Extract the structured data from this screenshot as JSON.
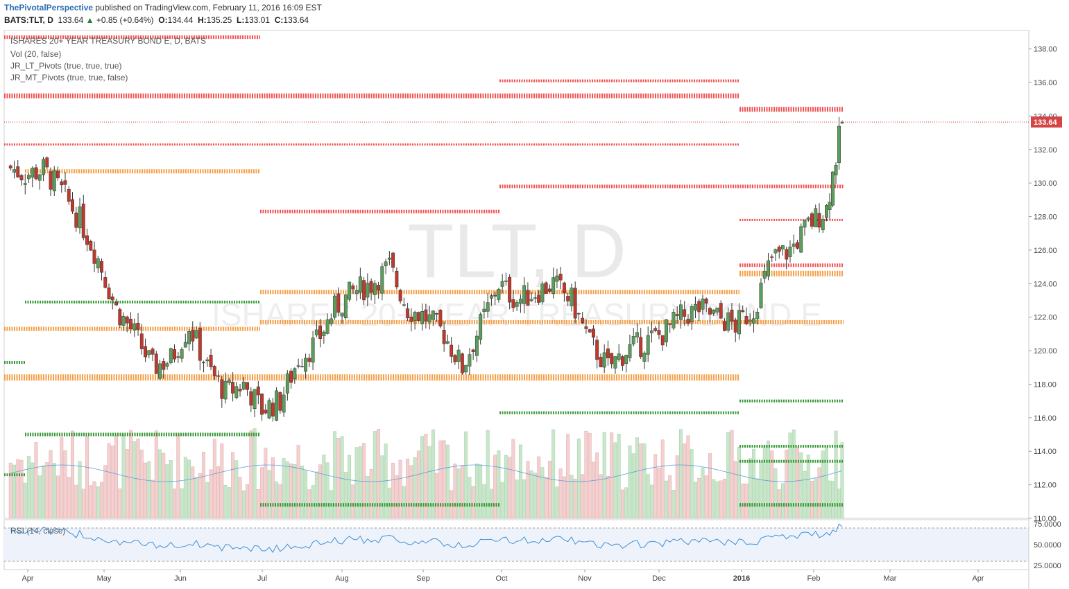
{
  "header": {
    "author": "ThePivotalPerspective",
    "published": "published on TradingView.com, February 11, 2016 16:09 EST"
  },
  "quote": {
    "symbol": "BATS:TLT, D",
    "last": "133.64",
    "change": "+0.85 (+0.64%)",
    "open_label": "O:",
    "open": "134.44",
    "high_label": "H:",
    "high": "135.25",
    "low_label": "L:",
    "low": "133.01",
    "close_label": "C:",
    "close": "133.64"
  },
  "indicators": {
    "title": "ISHARES 20+ YEAR TREASURY BOND E, D, BATS",
    "vol": "Vol (20, false)",
    "lt_pivots": "JR_LT_Pivots (true, true, true)",
    "mt_pivots": "JR_MT_Pivots (true, true, false)",
    "rsi": "RSI (14, close)"
  },
  "watermark": {
    "symbol": "TLT, D",
    "name": "ISHARES 20+ YEAR TREASURY BOND E"
  },
  "price_axis": {
    "ticks": [
      "138.00",
      "136.00",
      "134.00",
      "132.00",
      "130.00",
      "128.00",
      "126.00",
      "124.00",
      "122.00",
      "120.00",
      "118.00",
      "116.00",
      "114.00",
      "112.00",
      "110.00"
    ],
    "last_price": "133.64"
  },
  "rsi_axis": {
    "ticks": [
      "75.0000",
      "50.0000",
      "25.0000"
    ]
  },
  "time_axis": {
    "labels": [
      "Apr",
      "May",
      "Jun",
      "Jul",
      "Aug",
      "Sep",
      "Oct",
      "Nov",
      "Dec",
      "2016",
      "Feb",
      "Mar",
      "Apr"
    ]
  },
  "colors": {
    "up": "#5b9e5b",
    "down": "#c0392b",
    "resistance": "#f05454",
    "pivot": "#f5a04a",
    "support": "#3a9a3a",
    "volume_up": "#c8e6c9",
    "volume_down": "#f4d0d0",
    "rsi_line": "#3d8fd6",
    "rsi_band": "#eef3fb"
  },
  "chart_data": {
    "type": "candlestick",
    "symbol": "BATS:TLT",
    "x": [
      "2015-03-27",
      "2015-04-03",
      "2015-04-10",
      "2015-04-17",
      "2015-04-24",
      "2015-05-01",
      "2015-05-08",
      "2015-05-15",
      "2015-05-22",
      "2015-05-29",
      "2015-06-05",
      "2015-06-12",
      "2015-06-19",
      "2015-06-26",
      "2015-07-03",
      "2015-07-10",
      "2015-07-17",
      "2015-07-24",
      "2015-07-31",
      "2015-08-07",
      "2015-08-14",
      "2015-08-21",
      "2015-08-28",
      "2015-09-04",
      "2015-09-11",
      "2015-09-18",
      "2015-09-25",
      "2015-10-02",
      "2015-10-09",
      "2015-10-16",
      "2015-10-23",
      "2015-10-30",
      "2015-11-06",
      "2015-11-13",
      "2015-11-20",
      "2015-11-27",
      "2015-12-04",
      "2015-12-11",
      "2015-12-18",
      "2015-12-25",
      "2016-01-01",
      "2016-01-08",
      "2016-01-15",
      "2016-01-22",
      "2016-01-29",
      "2016-02-05",
      "2016-02-11"
    ],
    "close": [
      131.0,
      130.5,
      130.8,
      129.5,
      127.8,
      125.5,
      122.5,
      121.0,
      119.0,
      119.5,
      121.5,
      119.0,
      117.5,
      118.0,
      116.5,
      117.0,
      119.5,
      120.5,
      122.5,
      123.5,
      124.0,
      125.0,
      122.5,
      122.0,
      121.0,
      119.0,
      121.5,
      124.0,
      123.0,
      123.5,
      124.0,
      123.0,
      120.5,
      119.0,
      120.0,
      120.5,
      121.0,
      122.0,
      122.5,
      122.0,
      121.5,
      122.5,
      125.5,
      126.0,
      127.5,
      128.5,
      133.64
    ],
    "ylim": [
      110,
      139
    ],
    "volume_sma_label": "Vol (20, false)",
    "levels": {
      "resistance": [
        138.7,
        135.2,
        134.4,
        132.3,
        130.0,
        128.3,
        125.1,
        136.1,
        129.8,
        127.8
      ],
      "pivot": [
        130.7,
        123.5,
        121.3,
        118.4,
        124.6,
        121.7
      ],
      "support": [
        122.9,
        119.3,
        115.0,
        112.6,
        110.8,
        116.3,
        117.0,
        114.3,
        113.4
      ]
    },
    "rsi": {
      "ylim": [
        20,
        80
      ],
      "bands": [
        70,
        30
      ],
      "last": 77
    }
  }
}
